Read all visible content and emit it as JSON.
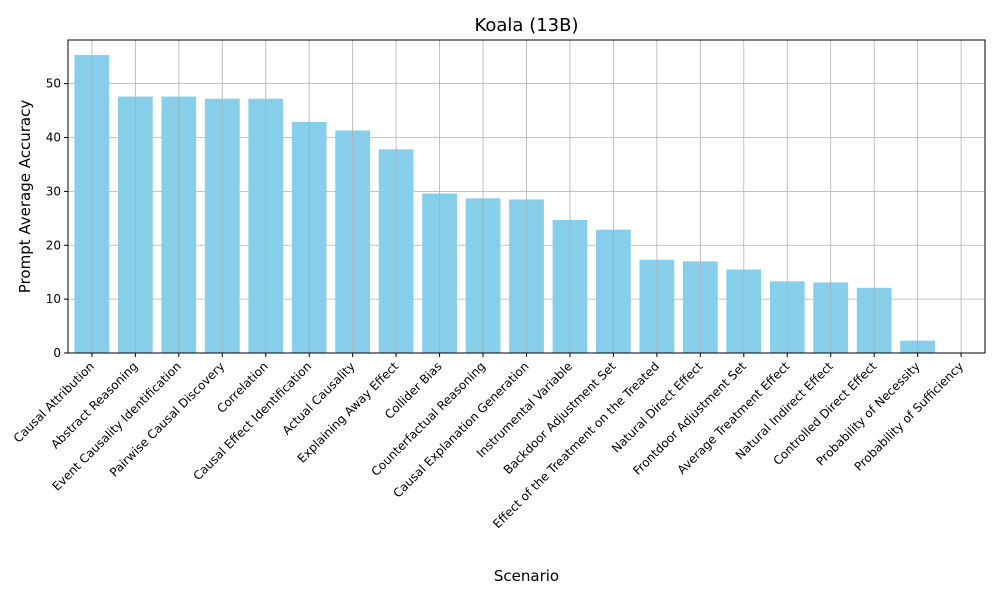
{
  "chart_data": {
    "type": "bar",
    "title": "Koala (13B)",
    "xlabel": "Scenario",
    "ylabel": "Prompt Average Accuracy",
    "categories": [
      "Causal Attribution",
      "Abstract Reasoning",
      "Event Causality Identification",
      "Pairwise Causal Discovery",
      "Correlation",
      "Causal Effect Identification",
      "Actual Causality",
      "Explaining Away Effect",
      "Collider Bias",
      "Counterfactual Reasoning",
      "Causal Explanation Generation",
      "Instrumental Variable",
      "Backdoor Adjustment Set",
      "Effect of the Treatment on the Treated",
      "Natural Direct Effect",
      "Frontdoor Adjustment Set",
      "Average Treatment Effect",
      "Natural Indirect Effect",
      "Controlled Direct Effect",
      "Probability of Necessity",
      "Probability of Sufficiency"
    ],
    "values": [
      55.3,
      47.6,
      47.6,
      47.2,
      47.2,
      42.9,
      41.3,
      37.8,
      29.6,
      28.7,
      28.5,
      24.7,
      22.9,
      17.3,
      17.0,
      15.5,
      13.3,
      13.1,
      12.1,
      2.3,
      0.1
    ],
    "yticks": [
      0,
      10,
      20,
      30,
      40,
      50
    ],
    "ylim": [
      0,
      58.1
    ],
    "grid": true,
    "colors": {
      "bar": "#87ceeb",
      "grid": "#b0b0b0",
      "axis": "#000000"
    }
  }
}
